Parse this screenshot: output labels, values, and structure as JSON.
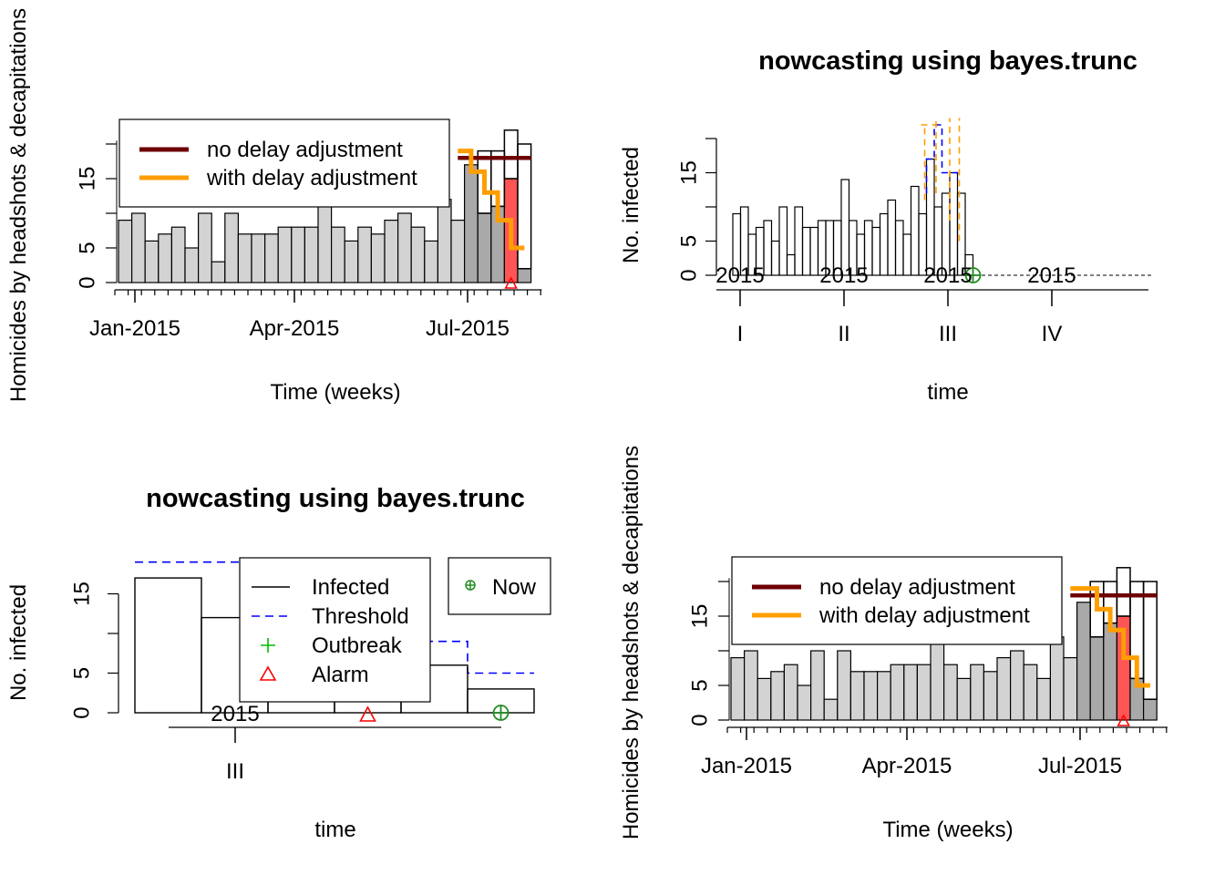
{
  "colors": {
    "grey_bar": "#d3d3d3",
    "dark_bar": "#a9a9a9",
    "red_bar": "#ff5555",
    "no_delay_line": "#6e0000",
    "with_delay_line": "#ff9e00",
    "threshold": "#0000ff",
    "outbreak": "#00bb00",
    "alarm": "#ff0000",
    "now": "#228b22"
  },
  "chart_data": [
    {
      "type": "bar",
      "panel": "top-left",
      "title": "",
      "xlabel": "Time (weeks)",
      "ylabel": "Homicides by headshots & decapitations",
      "ylim": [
        0,
        23
      ],
      "y_ticks": [
        "0",
        "5",
        "15"
      ],
      "x_tick_labels": [
        "Jan-2015",
        "Apr-2015",
        "Jul-2015"
      ],
      "week_counts": [
        9,
        10,
        6,
        7,
        8,
        5,
        10,
        3,
        10,
        7,
        7,
        7,
        8,
        8,
        8,
        12,
        8,
        6,
        8,
        7,
        9,
        10,
        8,
        6,
        12,
        9,
        17,
        10,
        11,
        15,
        2
      ],
      "dark_from_index": 26,
      "red_bar_index": 29,
      "nowcast_totals": [
        null,
        null,
        null,
        null,
        null,
        null,
        null,
        null,
        null,
        null,
        null,
        null,
        null,
        null,
        null,
        null,
        null,
        null,
        null,
        null,
        null,
        null,
        null,
        null,
        null,
        null,
        null,
        null,
        null,
        null,
        null
      ],
      "unfilled_tops": {
        "26": 17,
        "27": 19,
        "28": 19,
        "29": 22,
        "30": 20
      },
      "no_delay_level": 18,
      "with_delay_steps": [
        19,
        16,
        13,
        9,
        5
      ],
      "legend": {
        "position": "top-left",
        "items": [
          {
            "label": "no delay adjustment",
            "color": "#6e0000"
          },
          {
            "label": "with delay adjustment",
            "color": "#ff9e00"
          }
        ]
      }
    },
    {
      "type": "bar",
      "panel": "top-right",
      "title": "nowcasting using bayes.trunc",
      "xlabel": "time",
      "ylabel": "No. infected",
      "ylim": [
        0,
        20
      ],
      "y_ticks": [
        "0",
        "5",
        "15"
      ],
      "year_labels": [
        "2015",
        "2015",
        "2015",
        "2015"
      ],
      "quarter_labels": [
        "I",
        "II",
        "III",
        "IV"
      ],
      "counts": [
        9,
        10,
        6,
        7,
        8,
        5,
        10,
        3,
        10,
        7,
        7,
        8,
        8,
        8,
        14,
        8,
        6,
        8,
        7,
        9,
        11,
        8,
        6,
        13,
        9,
        17,
        10,
        12,
        15,
        12,
        3
      ],
      "now_marker": "⊕"
    },
    {
      "type": "bar",
      "panel": "bottom-left",
      "title": "nowcasting using bayes.trunc",
      "xlabel": "time",
      "ylabel": "No. infected",
      "ylim": [
        0,
        20
      ],
      "y_ticks": [
        "0",
        "5",
        "15"
      ],
      "year_label": "2015",
      "quarter_label": "III",
      "counts": [
        17,
        12,
        9,
        7,
        6,
        3
      ],
      "threshold": [
        19,
        19,
        12,
        10,
        9,
        5
      ],
      "legend": {
        "items": [
          {
            "label": "Infected",
            "style": "solid",
            "color": "#000000"
          },
          {
            "label": "Threshold",
            "style": "dashed",
            "color": "#0000ff"
          },
          {
            "label": "Outbreak",
            "symbol": "+",
            "color": "#00bb00"
          },
          {
            "label": "Alarm",
            "symbol": "triangle",
            "color": "#ff0000"
          }
        ],
        "now_label": "Now"
      }
    },
    {
      "type": "bar",
      "panel": "bottom-right",
      "title": "",
      "xlabel": "Time (weeks)",
      "ylabel": "Homicides by headshots & decapitations",
      "ylim": [
        0,
        23
      ],
      "y_ticks": [
        "0",
        "5",
        "15"
      ],
      "x_tick_labels": [
        "Jan-2015",
        "Apr-2015",
        "Jul-2015"
      ],
      "week_counts": [
        9,
        10,
        6,
        7,
        8,
        5,
        10,
        3,
        10,
        7,
        7,
        7,
        8,
        8,
        8,
        12,
        8,
        6,
        8,
        7,
        9,
        10,
        8,
        6,
        12,
        9,
        17,
        12,
        14,
        15,
        6,
        3
      ],
      "dark_from_index": 26,
      "red_bar_index": 29,
      "unfilled_tops": {
        "26": 17,
        "27": 20,
        "28": 20,
        "29": 22,
        "30": 20,
        "31": 20
      },
      "no_delay_level": 18,
      "with_delay_steps": [
        19,
        19,
        16,
        13,
        9,
        5
      ],
      "legend": {
        "position": "top-left",
        "items": [
          {
            "label": "no delay adjustment",
            "color": "#6e0000"
          },
          {
            "label": "with delay adjustment",
            "color": "#ff9e00"
          }
        ]
      }
    }
  ]
}
